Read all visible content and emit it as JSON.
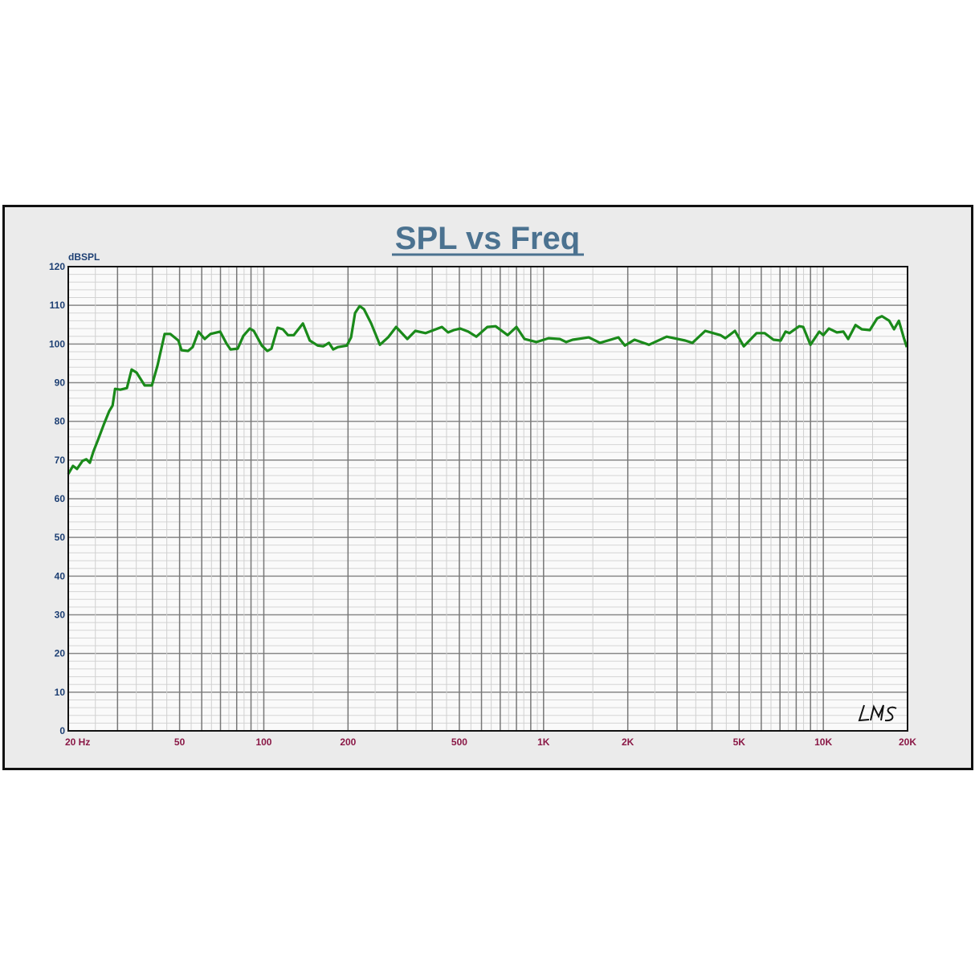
{
  "chart_data": {
    "type": "line",
    "title": "SPL vs Freq",
    "ylabel": "dBSPL",
    "xlabel": "",
    "x_scale": "log",
    "xlim": [
      20,
      20000
    ],
    "ylim": [
      0,
      120
    ],
    "grid": true,
    "x_tick_labels": [
      {
        "value": 20,
        "label": "20  Hz"
      },
      {
        "value": 50,
        "label": "50"
      },
      {
        "value": 100,
        "label": "100"
      },
      {
        "value": 200,
        "label": "200"
      },
      {
        "value": 500,
        "label": "500"
      },
      {
        "value": 1000,
        "label": "1K"
      },
      {
        "value": 2000,
        "label": "2K"
      },
      {
        "value": 5000,
        "label": "5K"
      },
      {
        "value": 10000,
        "label": "10K"
      },
      {
        "value": 20000,
        "label": "20K"
      }
    ],
    "y_ticks": [
      0,
      10,
      20,
      30,
      40,
      50,
      60,
      70,
      80,
      90,
      100,
      110,
      120
    ],
    "series": [
      {
        "color": "#1a8a1a",
        "points": [
          [
            20,
            66.4
          ],
          [
            20.8,
            68.5
          ],
          [
            21.5,
            67.7
          ],
          [
            22.5,
            69.8
          ],
          [
            23.2,
            70.2
          ],
          [
            23.9,
            69.3
          ],
          [
            24.6,
            72.2
          ],
          [
            25.5,
            75.1
          ],
          [
            26.9,
            79.5
          ],
          [
            28.0,
            82.6
          ],
          [
            28.8,
            84.1
          ],
          [
            29.4,
            88.4
          ],
          [
            30.7,
            88.2
          ],
          [
            32.4,
            88.6
          ],
          [
            33.7,
            93.4
          ],
          [
            35.1,
            92.6
          ],
          [
            37.5,
            89.3
          ],
          [
            39.8,
            89.3
          ],
          [
            41.7,
            94.5
          ],
          [
            44.2,
            102.6
          ],
          [
            46.3,
            102.6
          ],
          [
            49.5,
            100.9
          ],
          [
            50.8,
            98.4
          ],
          [
            53.6,
            98.2
          ],
          [
            55.7,
            99.2
          ],
          [
            58.4,
            103.2
          ],
          [
            61.5,
            101.3
          ],
          [
            64.5,
            102.6
          ],
          [
            69.8,
            103.2
          ],
          [
            73.6,
            100.1
          ],
          [
            76.0,
            98.6
          ],
          [
            80.7,
            98.8
          ],
          [
            84.5,
            102.1
          ],
          [
            89.1,
            104.0
          ],
          [
            92.1,
            103.4
          ],
          [
            98.4,
            99.6
          ],
          [
            103,
            98.2
          ],
          [
            106.5,
            98.8
          ],
          [
            112,
            104.2
          ],
          [
            117,
            103.8
          ],
          [
            122,
            102.3
          ],
          [
            128,
            102.3
          ],
          [
            138,
            105.3
          ],
          [
            146,
            100.9
          ],
          [
            156,
            99.6
          ],
          [
            163,
            99.4
          ],
          [
            171,
            100.3
          ],
          [
            177,
            98.6
          ],
          [
            184,
            99.2
          ],
          [
            198,
            99.6
          ],
          [
            205,
            101.7
          ],
          [
            212,
            108.0
          ],
          [
            220,
            109.8
          ],
          [
            228,
            109.0
          ],
          [
            242,
            105.3
          ],
          [
            260,
            99.8
          ],
          [
            278,
            101.7
          ],
          [
            297,
            104.4
          ],
          [
            326,
            101.3
          ],
          [
            348,
            103.4
          ],
          [
            379,
            102.8
          ],
          [
            433,
            104.4
          ],
          [
            456,
            103.0
          ],
          [
            478,
            103.6
          ],
          [
            504,
            104.0
          ],
          [
            538,
            103.2
          ],
          [
            575,
            101.9
          ],
          [
            630,
            104.4
          ],
          [
            674,
            104.6
          ],
          [
            744,
            102.3
          ],
          [
            800,
            104.4
          ],
          [
            855,
            101.3
          ],
          [
            944,
            100.5
          ],
          [
            1042,
            101.5
          ],
          [
            1143,
            101.3
          ],
          [
            1205,
            100.5
          ],
          [
            1271,
            101.1
          ],
          [
            1451,
            101.7
          ],
          [
            1591,
            100.3
          ],
          [
            1852,
            101.7
          ],
          [
            1953,
            99.6
          ],
          [
            2113,
            101.1
          ],
          [
            2381,
            99.8
          ],
          [
            2754,
            101.9
          ],
          [
            3206,
            100.9
          ],
          [
            3403,
            100.3
          ],
          [
            3783,
            103.4
          ],
          [
            4290,
            102.3
          ],
          [
            4464,
            101.5
          ],
          [
            4831,
            103.4
          ],
          [
            5196,
            99.4
          ],
          [
            5775,
            102.8
          ],
          [
            6170,
            102.8
          ],
          [
            6635,
            101.1
          ],
          [
            7043,
            100.9
          ],
          [
            7327,
            103.2
          ],
          [
            7571,
            102.8
          ],
          [
            8200,
            104.6
          ],
          [
            8474,
            104.4
          ],
          [
            8993,
            99.8
          ],
          [
            9670,
            103.2
          ],
          [
            9994,
            102.3
          ],
          [
            10470,
            104.0
          ],
          [
            11185,
            103.0
          ],
          [
            11792,
            103.2
          ],
          [
            12271,
            101.3
          ],
          [
            13028,
            104.9
          ],
          [
            13733,
            103.8
          ],
          [
            14665,
            103.6
          ],
          [
            15566,
            106.6
          ],
          [
            16196,
            107.2
          ],
          [
            17197,
            106.0
          ],
          [
            17892,
            103.8
          ],
          [
            18616,
            106.0
          ],
          [
            19372,
            101.7
          ],
          [
            19880,
            99.2
          ]
        ]
      }
    ]
  },
  "logo": "LMS"
}
